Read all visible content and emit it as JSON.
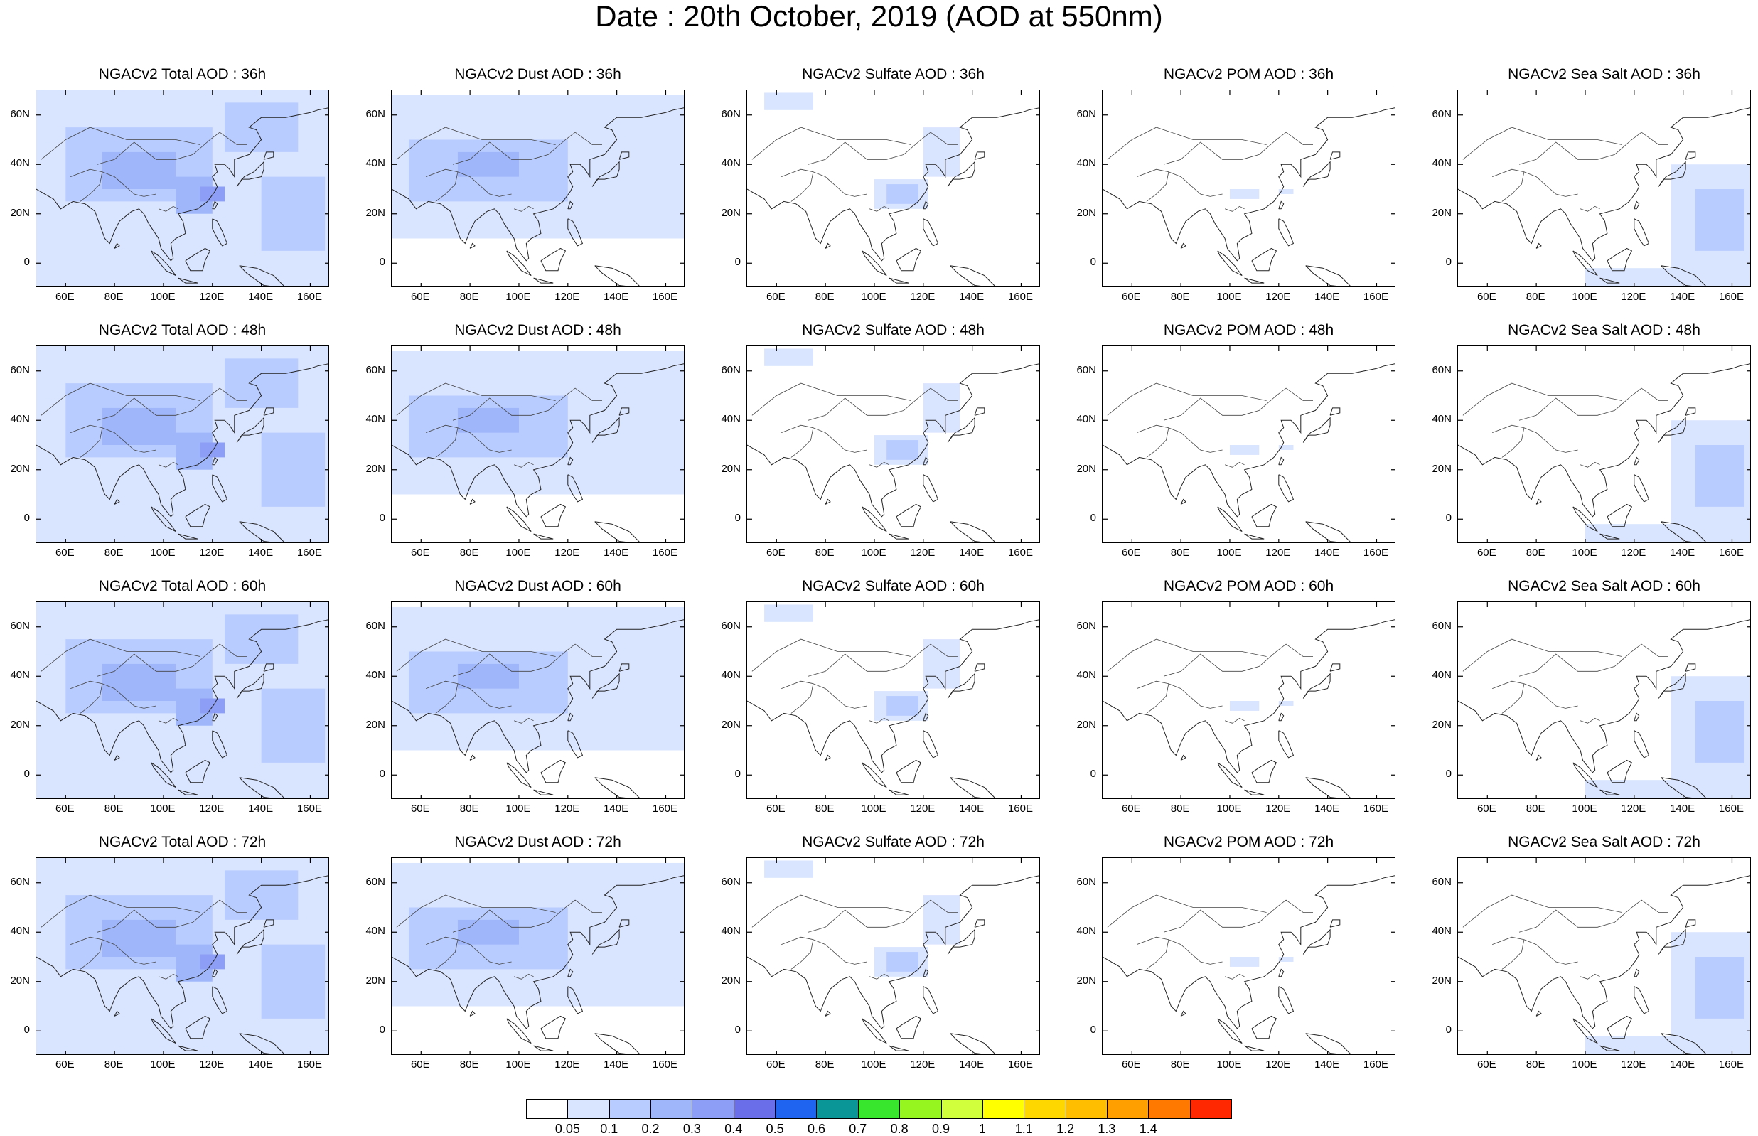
{
  "title": "Date : 20th October, 2019 (AOD at 550nm)",
  "panels": [
    [
      "NGACv2 Total AOD : 36h",
      "NGACv2 Dust AOD : 36h",
      "NGACv2 Sulfate AOD : 36h",
      "NGACv2 POM AOD : 36h",
      "NGACv2 Sea Salt AOD : 36h"
    ],
    [
      "NGACv2 Total AOD : 48h",
      "NGACv2 Dust AOD : 48h",
      "NGACv2 Sulfate AOD : 48h",
      "NGACv2 POM AOD : 48h",
      "NGACv2 Sea Salt AOD : 48h"
    ],
    [
      "NGACv2 Total AOD : 60h",
      "NGACv2 Dust AOD : 60h",
      "NGACv2 Sulfate AOD : 60h",
      "NGACv2 POM AOD : 60h",
      "NGACv2 Sea Salt AOD : 60h"
    ],
    [
      "NGACv2 Total AOD : 72h",
      "NGACv2 Dust AOD : 72h",
      "NGACv2 Sulfate AOD : 72h",
      "NGACv2 POM AOD : 72h",
      "NGACv2 Sea Salt  AOD : 72h"
    ]
  ],
  "map_extent": {
    "lon": [
      48,
      168
    ],
    "lat": [
      -10,
      70
    ]
  },
  "lon_ticks": [
    {
      "value": 60,
      "label": "60E"
    },
    {
      "value": 80,
      "label": "80E"
    },
    {
      "value": 100,
      "label": "100E"
    },
    {
      "value": 120,
      "label": "120E"
    },
    {
      "value": 140,
      "label": "140E"
    },
    {
      "value": 160,
      "label": "160E"
    }
  ],
  "lat_ticks": [
    {
      "value": 60,
      "label": "60N"
    },
    {
      "value": 40,
      "label": "40N"
    },
    {
      "value": 20,
      "label": "20N"
    },
    {
      "value": 0,
      "label": "0"
    }
  ],
  "colorbar": {
    "colors": [
      "#ffffff",
      "#d9e4ff",
      "#b8ccff",
      "#9fb6fb",
      "#8c9ef5",
      "#6a6fe9",
      "#1e64f0",
      "#0a9696",
      "#38e62e",
      "#96f51e",
      "#d2ff3c",
      "#ffff00",
      "#ffd700",
      "#ffbe00",
      "#ffa000",
      "#ff7800",
      "#ff2800"
    ],
    "labels": [
      "0.05",
      "0.1",
      "0.2",
      "0.3",
      "0.4",
      "0.5",
      "0.6",
      "0.7",
      "0.8",
      "0.9",
      "1",
      "1.1",
      "1.2",
      "1.3",
      "1.4"
    ]
  },
  "fields": {
    "total": [
      {
        "lon": [
          48,
          168
        ],
        "lat": [
          -10,
          70
        ],
        "level": 1
      },
      {
        "lon": [
          60,
          120
        ],
        "lat": [
          25,
          55
        ],
        "level": 2
      },
      {
        "lon": [
          125,
          155
        ],
        "lat": [
          45,
          65
        ],
        "level": 2
      },
      {
        "lon": [
          140,
          166
        ],
        "lat": [
          5,
          35
        ],
        "level": 2
      },
      {
        "lon": [
          75,
          105
        ],
        "lat": [
          30,
          45
        ],
        "level": 3
      },
      {
        "lon": [
          105,
          120
        ],
        "lat": [
          20,
          35
        ],
        "level": 3
      },
      {
        "lon": [
          115,
          125
        ],
        "lat": [
          25,
          31
        ],
        "level": 4
      }
    ],
    "dust": [
      {
        "lon": [
          48,
          168
        ],
        "lat": [
          10,
          68
        ],
        "level": 1
      },
      {
        "lon": [
          55,
          120
        ],
        "lat": [
          25,
          50
        ],
        "level": 2
      },
      {
        "lon": [
          75,
          100
        ],
        "lat": [
          35,
          45
        ],
        "level": 3
      }
    ],
    "sulfate": [
      {
        "lon": [
          55,
          75
        ],
        "lat": [
          62,
          69
        ],
        "level": 1
      },
      {
        "lon": [
          100,
          122
        ],
        "lat": [
          22,
          34
        ],
        "level": 1
      },
      {
        "lon": [
          105,
          118
        ],
        "lat": [
          24,
          32
        ],
        "level": 2
      },
      {
        "lon": [
          120,
          135
        ],
        "lat": [
          35,
          55
        ],
        "level": 1
      }
    ],
    "pom": [
      {
        "lon": [
          100,
          112
        ],
        "lat": [
          26,
          30
        ],
        "level": 1
      },
      {
        "lon": [
          120,
          126
        ],
        "lat": [
          28,
          30
        ],
        "level": 1
      }
    ],
    "seasalt": [
      {
        "lon": [
          135,
          168
        ],
        "lat": [
          -10,
          40
        ],
        "level": 1
      },
      {
        "lon": [
          145,
          165
        ],
        "lat": [
          5,
          30
        ],
        "level": 2
      },
      {
        "lon": [
          100,
          140
        ],
        "lat": [
          -10,
          -2
        ],
        "level": 1
      }
    ]
  }
}
